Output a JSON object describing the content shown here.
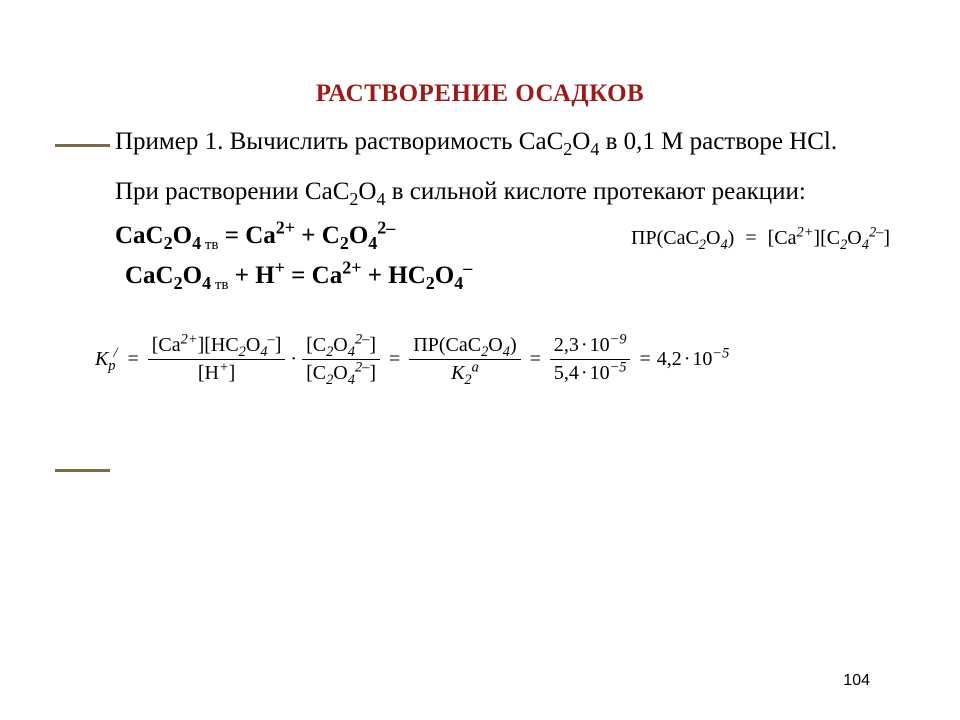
{
  "title": "РАСТВОРЕНИЕ ОСАДКОВ",
  "para1_lead": "Пример 1. Вычислить растворимость CaC",
  "para1_tail": " в 0,1 М растворе HCl.",
  "para2_lead": "При растворении CaC",
  "para2_tail": " в сильной кислоте протекают реакции:",
  "eq1_lhs_a": "CaC",
  "eq1_lhs_b": "O",
  "eq1_rhs_a": " = Ca",
  "eq1_rhs_b": " + C",
  "eq1_rhs_c": "O",
  "sp_lhs": "ПР(CaC",
  "sp_mid": "O",
  "sp_tail": ")",
  "sp_rhs_a": "[Ca",
  "sp_rhs_b": "][C",
  "sp_rhs_c": "O",
  "sp_rhs_d": "]",
  "eq2_a": "CaC",
  "eq2_b": "O",
  "eq2_c": " + H",
  "eq2_d": " = Ca",
  "eq2_e": " + HC",
  "eq2_f": "O",
  "kp_label": "К",
  "kp_sub": "р",
  "kp_sup": "/",
  "frac1_num_a": "[Ca",
  "frac1_num_b": "][HC",
  "frac1_num_c": "O",
  "frac1_num_d": "]",
  "frac1_den_a": "[H",
  "frac1_den_b": "]",
  "frac2_num_a": "[C",
  "frac2_num_b": "O",
  "frac2_num_c": "]",
  "frac2_den_a": "[C",
  "frac2_den_b": "O",
  "frac2_den_c": "]",
  "frac3_num_a": "ПР(CaC",
  "frac3_num_b": "O",
  "frac3_num_c": ")",
  "frac3_den_a": "К",
  "frac3_den_sub": "2",
  "frac3_den_sup": "а",
  "frac4_num_a": "2,3",
  "frac4_num_b": "10",
  "frac4_den_a": "5,4",
  "frac4_den_b": "10",
  "result_a": "4,2",
  "result_b": "10",
  "exp_neg9": "−9",
  "exp_neg5": "−5",
  "sub2": "2",
  "sub4": "4",
  "sup2p": "2+",
  "sup2m": "2–",
  "supm": "–",
  "supp": "+",
  "tv": " тв",
  "pagenum": "104",
  "colors": {
    "accent": "#7b6a4b",
    "title": "#9c1a1a",
    "bg": "#ffffff",
    "text": "#000000"
  }
}
